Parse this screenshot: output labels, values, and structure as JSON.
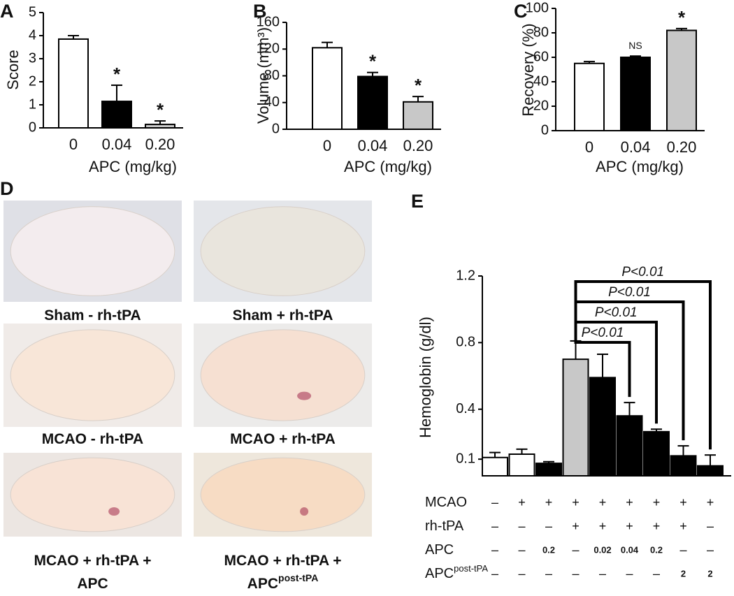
{
  "chart_data": [
    {
      "type": "bar",
      "panel": "A",
      "ylabel": "Score",
      "xlabel": "APC (mg/kg)",
      "categories": [
        "0",
        "0.04",
        "0.20"
      ],
      "values": [
        3.85,
        1.15,
        0.15
      ],
      "errors": [
        0.15,
        0.7,
        0.15
      ],
      "colors": [
        "#ffffff",
        "#000000",
        "#c8c8c8"
      ],
      "annotations": [
        null,
        "*",
        "*"
      ],
      "ylim": [
        0,
        5
      ],
      "yticks": [
        0,
        1,
        2,
        3,
        4,
        5
      ]
    },
    {
      "type": "bar",
      "panel": "B",
      "ylabel": "Volume (mm³)",
      "xlabel": "APC (mg/kg)",
      "categories": [
        "0",
        "0.04",
        "0.20"
      ],
      "values": [
        122,
        79,
        41
      ],
      "errors": [
        8,
        6,
        8
      ],
      "colors": [
        "#ffffff",
        "#000000",
        "#c8c8c8"
      ],
      "annotations": [
        null,
        "*",
        "*"
      ],
      "ylim": [
        0,
        160
      ],
      "yticks": [
        0,
        40,
        80,
        120,
        160
      ]
    },
    {
      "type": "bar",
      "panel": "C",
      "ylabel": "Recovery (%)",
      "xlabel": "APC (mg/kg)",
      "categories": [
        "0",
        "0.04",
        "0.20"
      ],
      "values": [
        55,
        60,
        82
      ],
      "errors": [
        1.5,
        1,
        1.5
      ],
      "colors": [
        "#ffffff",
        "#000000",
        "#c8c8c8"
      ],
      "annotations": [
        null,
        "NS",
        "*"
      ],
      "ylim": [
        0,
        100
      ],
      "yticks": [
        0,
        20,
        40,
        60,
        80,
        100
      ]
    },
    {
      "type": "bar",
      "panel": "E",
      "ylabel": "Hemoglobin (g/dl)",
      "categories": [
        null,
        null,
        null,
        null,
        null,
        null,
        null,
        null,
        null
      ],
      "values": [
        0.11,
        0.13,
        0.075,
        0.7,
        0.59,
        0.36,
        0.265,
        0.12,
        0.06
      ],
      "errors": [
        0.03,
        0.03,
        0.01,
        0.11,
        0.14,
        0.08,
        0.015,
        0.06,
        0.065
      ],
      "colors": [
        "#ffffff",
        "#ffffff",
        "#000000",
        "#c8c8c8",
        "#000000",
        "#000000",
        "#000000",
        "#000000",
        "#000000"
      ],
      "ylim": [
        0,
        1.2
      ],
      "yticks": [
        0.1,
        0.4,
        0.8,
        1.2
      ],
      "comparisons": [
        {
          "from": 3,
          "to": 5,
          "label": "P<0.01"
        },
        {
          "from": 3,
          "to": 6,
          "label": "P<0.01"
        },
        {
          "from": 3,
          "to": 7,
          "label": "P<0.01"
        },
        {
          "from": 3,
          "to": 8,
          "label": "P<0.01"
        }
      ],
      "conditions": [
        {
          "name": "MCAO",
          "cells": [
            "–",
            "+",
            "+",
            "+",
            "+",
            "+",
            "+",
            "+",
            "+"
          ]
        },
        {
          "name": "rh-tPA",
          "cells": [
            "–",
            "–",
            "–",
            "+",
            "+",
            "+",
            "+",
            "+",
            "–"
          ]
        },
        {
          "name": "APC",
          "cells": [
            "–",
            "–",
            "0.2",
            "–",
            "0.02",
            "0.04",
            "0.2",
            "–",
            "–"
          ]
        },
        {
          "name": "APC",
          "name_sup": "post-tPA",
          "cells": [
            "–",
            "–",
            "–",
            "–",
            "–",
            "–",
            "–",
            "2",
            "2"
          ]
        }
      ]
    }
  ],
  "panel_d": {
    "label": "D",
    "images": [
      {
        "caption": [
          "Sham - rh-tPA"
        ]
      },
      {
        "caption": [
          "Sham + rh-tPA"
        ]
      },
      {
        "caption": [
          "MCAO - rh-tPA"
        ]
      },
      {
        "caption": [
          "MCAO + rh-tPA"
        ]
      },
      {
        "caption": [
          "MCAO + rh-tPA +",
          "APC"
        ]
      },
      {
        "caption": [
          "MCAO + rh-tPA +",
          "APC"
        ],
        "caption_sup": "post-tPA"
      }
    ]
  }
}
